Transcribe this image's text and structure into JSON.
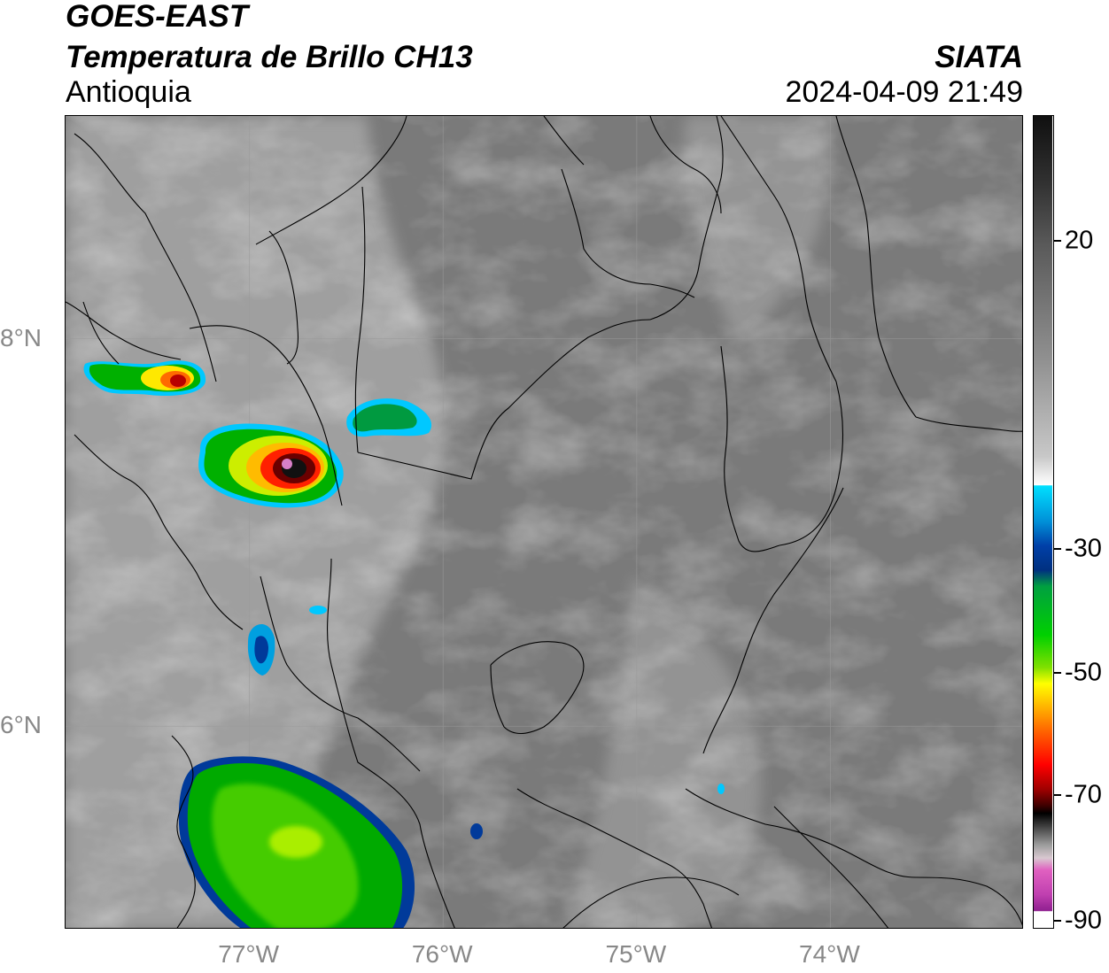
{
  "header": {
    "title_line1": "GOES-EAST",
    "title_line2": "Temperatura de Brillo CH13",
    "region": "Antioquia",
    "organization": "SIATA",
    "timestamp": "2024-04-09 21:49"
  },
  "map": {
    "lon_range": [
      -77.95,
      -73.0
    ],
    "lat_range": [
      4.95,
      9.15
    ],
    "lon_ticks": [
      {
        "value": -77,
        "label": "77°W"
      },
      {
        "value": -76,
        "label": "76°W"
      },
      {
        "value": -75,
        "label": "75°W"
      },
      {
        "value": -74,
        "label": "74°W"
      }
    ],
    "lat_ticks": [
      {
        "value": 8,
        "label": "8°N"
      },
      {
        "value": 6,
        "label": "6°N"
      }
    ],
    "gridlines": true,
    "background_gray": "#7a7a7a",
    "storm_cells": [
      {
        "lon": -77.45,
        "lat": 7.82,
        "min_temp": -64
      },
      {
        "lon": -76.75,
        "lat": 7.5,
        "min_temp": -82
      },
      {
        "lon": -76.25,
        "lat": 7.65,
        "min_temp": -38
      },
      {
        "lon": -77.0,
        "lat": 5.4,
        "min_temp": -44
      },
      {
        "lon": -76.95,
        "lat": 6.5,
        "min_temp": -34
      }
    ]
  },
  "colorbar": {
    "label_ticks": [
      {
        "value": 20,
        "label": "20"
      },
      {
        "value": -30,
        "label": "-30"
      },
      {
        "value": -50,
        "label": "-50"
      },
      {
        "value": -70,
        "label": "-70"
      },
      {
        "value": -90,
        "label": "-90"
      }
    ],
    "colors": {
      "cyan": "#00d8ff",
      "blue": "#003aa8",
      "green": "#00c800",
      "yellow": "#ffee00",
      "red": "#e00000",
      "dark_red": "#5a0000",
      "black": "#000000",
      "pink": "#e070d0",
      "purple": "#8a1a8a"
    }
  }
}
